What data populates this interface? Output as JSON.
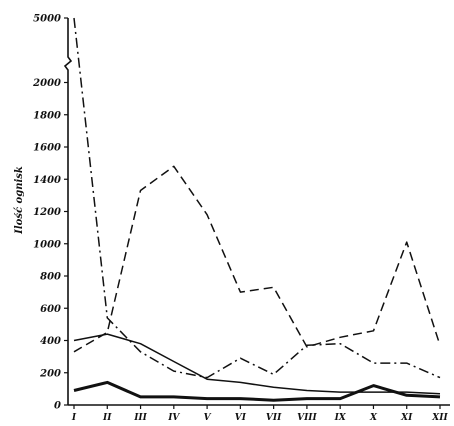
{
  "chart_data": {
    "type": "line",
    "title": "",
    "xlabel": "",
    "ylabel": "Ilość ognisk",
    "categories": [
      "I",
      "II",
      "III",
      "IV",
      "V",
      "VI",
      "VII",
      "VIII",
      "IX",
      "X",
      "XI",
      "XII"
    ],
    "y_ticks": [
      0,
      200,
      400,
      600,
      800,
      1000,
      1200,
      1400,
      1600,
      1800,
      2000,
      5000
    ],
    "y_tick_labels": [
      "0",
      "200",
      "400",
      "600",
      "800",
      "1000",
      "1200",
      "1400",
      "1600",
      "1800",
      "2000",
      "5000"
    ],
    "axis_break": {
      "from": 2000,
      "to": 5000
    },
    "ylim": [
      0,
      5000
    ],
    "grid": false,
    "legend": "none",
    "series": [
      {
        "style": "dash-dot",
        "color": "#111111",
        "values": [
          5000,
          540,
          330,
          210,
          170,
          290,
          190,
          370,
          380,
          260,
          260,
          170
        ]
      },
      {
        "style": "dashed",
        "color": "#111111",
        "values": [
          330,
          450,
          1330,
          1480,
          1180,
          700,
          730,
          360,
          420,
          460,
          1010,
          370
        ]
      },
      {
        "style": "solid",
        "color": "#111111",
        "values": [
          400,
          440,
          380,
          270,
          160,
          140,
          110,
          90,
          80,
          80,
          80,
          70
        ]
      },
      {
        "style": "solid-bold",
        "color": "#111111",
        "values": [
          90,
          140,
          50,
          50,
          40,
          40,
          30,
          40,
          40,
          120,
          60,
          50
        ]
      }
    ]
  }
}
